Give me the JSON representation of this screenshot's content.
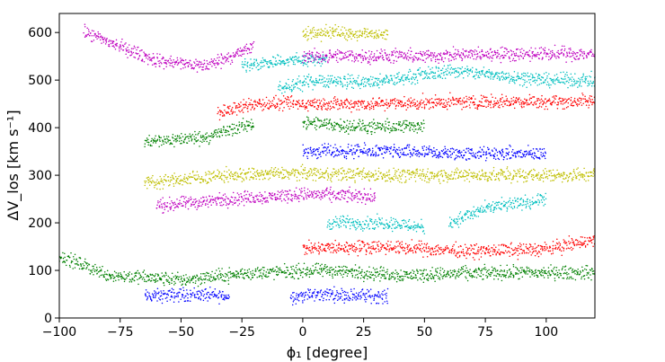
{
  "chart_data": {
    "type": "scatter",
    "xlabel": "ϕ₁ [degree]",
    "ylabel": "ΔV_los [km s⁻¹]",
    "xlim": [
      -100,
      120
    ],
    "ylim": [
      0,
      640
    ],
    "xticks": [
      -100,
      -75,
      -50,
      -25,
      0,
      25,
      50,
      75,
      100
    ],
    "yticks": [
      0,
      100,
      200,
      300,
      400,
      500,
      600
    ],
    "xtick_labels": [
      "−100",
      "−75",
      "−50",
      "−25",
      "0",
      "25",
      "50",
      "75",
      "100"
    ],
    "ytick_labels": [
      "0",
      "100",
      "200",
      "300",
      "400",
      "500",
      "600"
    ],
    "grid": false,
    "legend": "none",
    "series": [
      {
        "color": "#0000ff",
        "offset": 0,
        "tracks": [
          [
            [
              -65,
              45
            ],
            [
              -45,
              50
            ],
            [
              -30,
              45
            ]
          ],
          [
            [
              -5,
              45
            ],
            [
              10,
              50
            ],
            [
              35,
              45
            ]
          ],
          [
            [
              0,
              350
            ],
            [
              30,
              350
            ],
            [
              65,
              345
            ],
            [
              100,
              345
            ]
          ]
        ]
      },
      {
        "color": "#008000",
        "offset": 0,
        "tracks": [
          [
            [
              -100,
              130
            ],
            [
              -80,
              90
            ],
            [
              -50,
              80
            ],
            [
              -20,
              95
            ],
            [
              10,
              100
            ],
            [
              40,
              90
            ],
            [
              80,
              95
            ],
            [
              120,
              95
            ]
          ],
          [
            [
              -65,
              370
            ],
            [
              -40,
              380
            ],
            [
              -20,
              410
            ]
          ],
          [
            [
              0,
              410
            ],
            [
              30,
              400
            ],
            [
              50,
              405
            ]
          ]
        ]
      },
      {
        "color": "#ff0000",
        "offset": 0,
        "tracks": [
          [
            [
              0,
              145
            ],
            [
              30,
              150
            ],
            [
              70,
              140
            ],
            [
              100,
              145
            ],
            [
              120,
              165
            ]
          ],
          [
            [
              -35,
              430
            ],
            [
              -20,
              450
            ],
            [
              0,
              450
            ],
            [
              30,
              450
            ],
            [
              80,
              455
            ],
            [
              120,
              455
            ]
          ]
        ]
      },
      {
        "color": "#00bfbf",
        "offset": 0,
        "tracks": [
          [
            [
              10,
              200
            ],
            [
              35,
              200
            ],
            [
              50,
              190
            ]
          ],
          [
            [
              60,
              200
            ],
            [
              75,
              230
            ],
            [
              100,
              250
            ]
          ],
          [
            [
              -10,
              480
            ],
            [
              5,
              500
            ],
            [
              30,
              495
            ],
            [
              60,
              520
            ],
            [
              100,
              500
            ],
            [
              120,
              500
            ]
          ],
          [
            [
              -25,
              530
            ],
            [
              -10,
              540
            ],
            [
              10,
              545
            ]
          ]
        ]
      },
      {
        "color": "#bfbf00",
        "offset": 0,
        "tracks": [
          [
            [
              -65,
              285
            ],
            [
              -30,
              300
            ],
            [
              0,
              305
            ],
            [
              30,
              300
            ],
            [
              70,
              300
            ],
            [
              120,
              300
            ]
          ],
          [
            [
              0,
              600
            ],
            [
              15,
              600
            ],
            [
              35,
              595
            ]
          ]
        ]
      },
      {
        "color": "#bf00bf",
        "offset": 0,
        "tracks": [
          [
            [
              -60,
              235
            ],
            [
              -30,
              250
            ],
            [
              0,
              260
            ],
            [
              30,
              255
            ]
          ],
          [
            [
              -90,
              600
            ],
            [
              -60,
              540
            ],
            [
              -40,
              530
            ],
            [
              -20,
              570
            ]
          ],
          [
            [
              0,
              550
            ],
            [
              50,
              550
            ],
            [
              80,
              555
            ],
            [
              120,
              555
            ]
          ]
        ]
      }
    ]
  }
}
